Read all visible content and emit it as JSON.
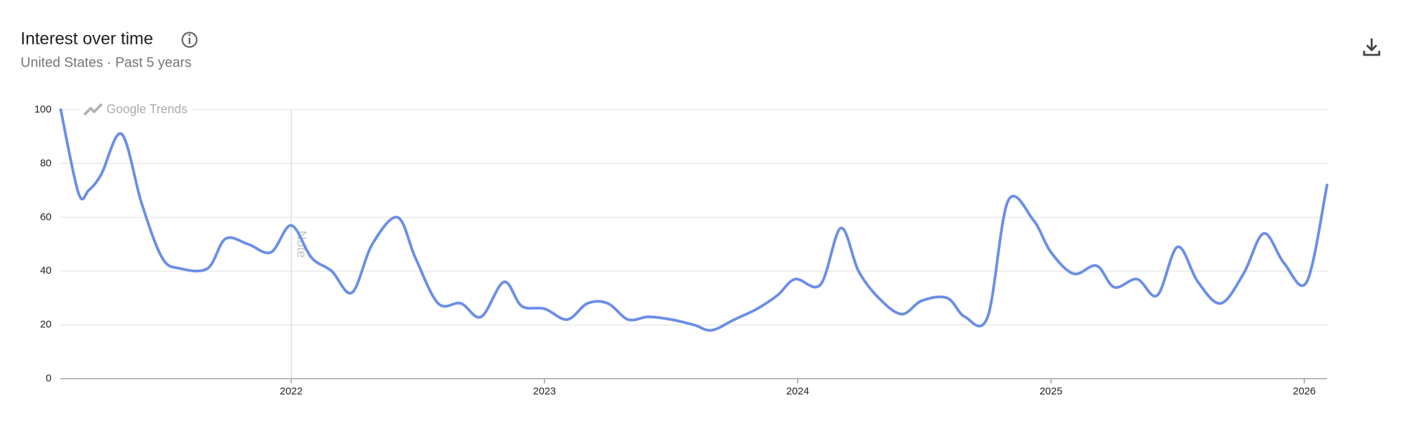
{
  "chart_data": {
    "type": "line",
    "title": "Interest over time",
    "subtitle": "United States · Past 5 years",
    "watermark": "Google Trends",
    "note": {
      "x": 2022.0,
      "label": "Note"
    },
    "x": [
      2021.09,
      2021.16,
      2021.2,
      2021.25,
      2021.33,
      2021.41,
      2021.49,
      2021.56,
      2021.67,
      2021.74,
      2021.83,
      2021.92,
      2022.0,
      2022.08,
      2022.16,
      2022.24,
      2022.32,
      2022.42,
      2022.49,
      2022.58,
      2022.67,
      2022.75,
      2022.84,
      2022.91,
      2023.0,
      2023.09,
      2023.17,
      2023.25,
      2023.33,
      2023.41,
      2023.5,
      2023.59,
      2023.66,
      2023.75,
      2023.84,
      2023.92,
      2023.99,
      2024.09,
      2024.17,
      2024.24,
      2024.32,
      2024.41,
      2024.49,
      2024.59,
      2024.66,
      2024.75,
      2024.83,
      2024.93,
      2025.0,
      2025.09,
      2025.18,
      2025.25,
      2025.34,
      2025.42,
      2025.5,
      2025.58,
      2025.67,
      2025.76,
      2025.84,
      2025.92,
      2026.01,
      2026.09
    ],
    "series": [
      {
        "color": "#6b8fe6",
        "values": [
          100,
          69,
          70,
          76,
          91,
          65,
          45,
          41,
          41,
          52,
          50,
          47,
          57,
          45,
          40,
          32,
          50,
          60,
          45,
          28,
          28,
          23,
          36,
          27,
          26,
          22,
          28,
          28,
          22,
          23,
          22,
          20,
          18,
          22,
          26,
          31,
          37,
          35,
          56,
          40,
          30,
          24,
          29,
          30,
          23,
          23,
          66,
          59,
          47,
          39,
          42,
          34,
          37,
          31,
          49,
          36,
          28,
          39,
          54,
          43,
          36,
          72
        ]
      }
    ],
    "xlim": [
      2021.09,
      2026.09
    ],
    "xticks": [
      2022,
      2023,
      2024,
      2025,
      2026
    ],
    "ylim": [
      0,
      100
    ],
    "yticks": [
      0,
      20,
      40,
      60,
      80,
      100
    ],
    "grid": true
  }
}
